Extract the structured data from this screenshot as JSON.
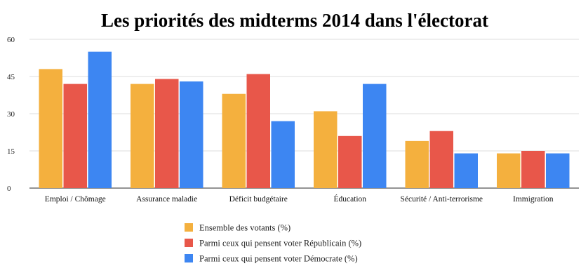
{
  "chart_data": {
    "type": "bar",
    "title": "Les priorités des midterms 2014 dans l'électorat",
    "categories": [
      "Emploi / Chômage",
      "Assurance maladie",
      "Déficit budgétaire",
      "Éducation",
      "Sécurité / Anti-terrorisme",
      "Immigration"
    ],
    "series": [
      {
        "name": "Ensemble des votants (%)",
        "color": "#f4b03e",
        "values": [
          48,
          42,
          38,
          31,
          19,
          14
        ]
      },
      {
        "name": "Parmi ceux qui pensent voter Républicain (%)",
        "color": "#e8574a",
        "values": [
          42,
          44,
          46,
          21,
          23,
          15
        ]
      },
      {
        "name": "Parmi ceux qui pensent voter Démocrate (%)",
        "color": "#3d86f2",
        "values": [
          55,
          43,
          27,
          42,
          14,
          14
        ]
      }
    ],
    "yticks": [
      0,
      15,
      30,
      45,
      60
    ],
    "ylim": [
      0,
      60
    ],
    "grid": true,
    "legend_position": "bottom-center"
  }
}
